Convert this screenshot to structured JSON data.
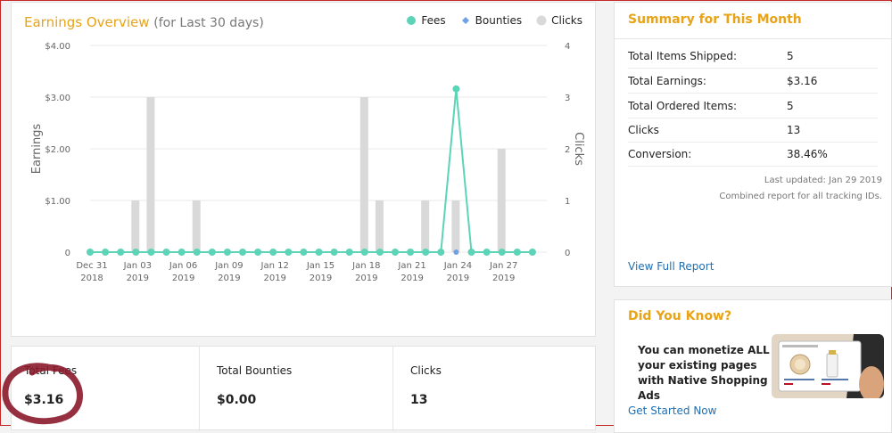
{
  "chart": {
    "title": "Earnings Overview",
    "subtitle": "(for Last 30 days)",
    "left_axis_label": "Earnings",
    "right_axis_label": "Clicks",
    "legend": [
      {
        "key": "fees",
        "label": "Fees",
        "color": "#5dd3b8",
        "shape": "circle"
      },
      {
        "key": "bounties",
        "label": "Bounties",
        "color": "#6fa1e3",
        "shape": "diamond"
      },
      {
        "key": "clicks",
        "label": "Clicks",
        "color": "#d9d9d9",
        "shape": "circle"
      }
    ]
  },
  "chart_data": {
    "type": "bar+line",
    "title": "Earnings Overview",
    "subtitle": "(for Last 30 days)",
    "ylabel_left": "Earnings",
    "ylabel_right": "Clicks",
    "ylim_left": [
      0,
      4
    ],
    "ylim_right": [
      0,
      4
    ],
    "y_ticks_left": [
      "0",
      "$1.00",
      "$2.00",
      "$3.00",
      "$4.00"
    ],
    "y_ticks_right": [
      "0",
      "1",
      "2",
      "3",
      "4"
    ],
    "x_tick_labels": [
      {
        "day": 0,
        "line1": "Dec 31",
        "line2": "2018"
      },
      {
        "day": 3,
        "line1": "Jan 03",
        "line2": "2019"
      },
      {
        "day": 6,
        "line1": "Jan 06",
        "line2": "2019"
      },
      {
        "day": 9,
        "line1": "Jan 09",
        "line2": "2019"
      },
      {
        "day": 12,
        "line1": "Jan 12",
        "line2": "2019"
      },
      {
        "day": 15,
        "line1": "Jan 15",
        "line2": "2019"
      },
      {
        "day": 18,
        "line1": "Jan 18",
        "line2": "2019"
      },
      {
        "day": 21,
        "line1": "Jan 21",
        "line2": "2019"
      },
      {
        "day": 24,
        "line1": "Jan 24",
        "line2": "2019"
      },
      {
        "day": 27,
        "line1": "Jan 27",
        "line2": "2019"
      }
    ],
    "series": [
      {
        "name": "Fees",
        "type": "line",
        "color": "#5dd3b8",
        "values": [
          0,
          0,
          0,
          0,
          0,
          0,
          0,
          0,
          0,
          0,
          0,
          0,
          0,
          0,
          0,
          0,
          0,
          0,
          0,
          0,
          0,
          0,
          0,
          0,
          3.16,
          0,
          0,
          0,
          0,
          0
        ]
      },
      {
        "name": "Bounties",
        "type": "line",
        "color": "#6fa1e3",
        "values": [
          0,
          0,
          0,
          0,
          0,
          0,
          0,
          0,
          0,
          0,
          0,
          0,
          0,
          0,
          0,
          0,
          0,
          0,
          0,
          0,
          0,
          0,
          0,
          0,
          0,
          0,
          0,
          0,
          0,
          0
        ]
      },
      {
        "name": "Clicks",
        "type": "bar",
        "color": "#d9d9d9",
        "values": [
          0,
          0,
          0,
          1,
          3,
          0,
          0,
          1,
          0,
          0,
          0,
          0,
          0,
          0,
          0,
          0,
          0,
          0,
          3,
          1,
          0,
          0,
          1,
          0,
          1,
          0,
          0,
          2,
          0,
          0
        ]
      }
    ],
    "grid": true,
    "legend_position": "top-right"
  },
  "stats": [
    {
      "label": "Total Fees",
      "value": "$3.16"
    },
    {
      "label": "Total Bounties",
      "value": "$0.00"
    },
    {
      "label": "Clicks",
      "value": "13"
    }
  ],
  "summary": {
    "title": "Summary for This Month",
    "rows": [
      {
        "label": "Total Items Shipped:",
        "value": "5"
      },
      {
        "label": "Total Earnings:",
        "value": "$3.16"
      },
      {
        "label": "Total Ordered Items:",
        "value": "5"
      },
      {
        "label": "Clicks",
        "value": "13"
      },
      {
        "label": "Conversion:",
        "value": "38.46%"
      }
    ],
    "last_updated": "Last updated: Jan 29 2019",
    "combined_note": "Combined report for all tracking IDs.",
    "view_full_report": "View Full Report"
  },
  "did_you_know": {
    "title": "Did You Know?",
    "text": "You can monetize ALL your existing pages with Native Shopping Ads",
    "link": "Get Started Now"
  },
  "colors": {
    "accent": "#e8a317",
    "link": "#1f6fb2",
    "fees": "#5dd3b8",
    "bounties": "#6fa1e3",
    "clicks": "#d9d9d9",
    "annotation": "#8b1a2b"
  }
}
